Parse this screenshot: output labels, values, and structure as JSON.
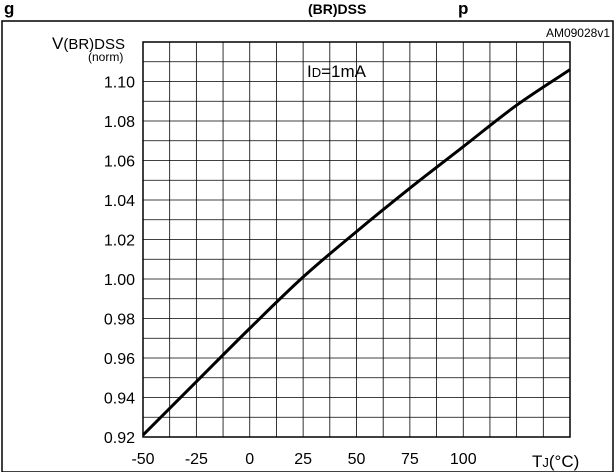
{
  "header": {
    "figure_title_fragment": "g",
    "subscript_fragment": "(BR)DSS",
    "trailing_fragment": "p"
  },
  "chart_data": {
    "type": "line",
    "title": "",
    "figure_code": "AM09028v1",
    "annotation": {
      "prefix": "I",
      "subscript": "D",
      "suffix": "=1mA"
    },
    "ylabel": {
      "main": "V",
      "subscript": "(BR)DSS",
      "unit": "(norm)"
    },
    "xlabel": {
      "main": "T",
      "subscript": "J",
      "unit": "(°C)"
    },
    "xlim": [
      -50,
      150
    ],
    "ylim": [
      0.92,
      1.12
    ],
    "x_ticks": [
      -50,
      -25,
      0,
      25,
      50,
      75,
      100
    ],
    "x_tick_labels": [
      "-50",
      "-25",
      "0",
      "25",
      "50",
      "75",
      "100"
    ],
    "y_ticks": [
      0.92,
      0.94,
      0.96,
      0.98,
      1.0,
      1.02,
      1.04,
      1.06,
      1.08,
      1.1
    ],
    "y_tick_labels": [
      "0.92",
      "0.94",
      "0.96",
      "0.98",
      "1.00",
      "1.02",
      "1.04",
      "1.06",
      "1.08",
      "1.10"
    ],
    "grid": true,
    "series": [
      {
        "x": [
          -50,
          -25,
          0,
          25,
          50,
          75,
          100,
          125,
          150
        ],
        "y": [
          0.921,
          0.948,
          0.975,
          1.001,
          1.024,
          1.046,
          1.067,
          1.088,
          1.106
        ]
      }
    ]
  }
}
